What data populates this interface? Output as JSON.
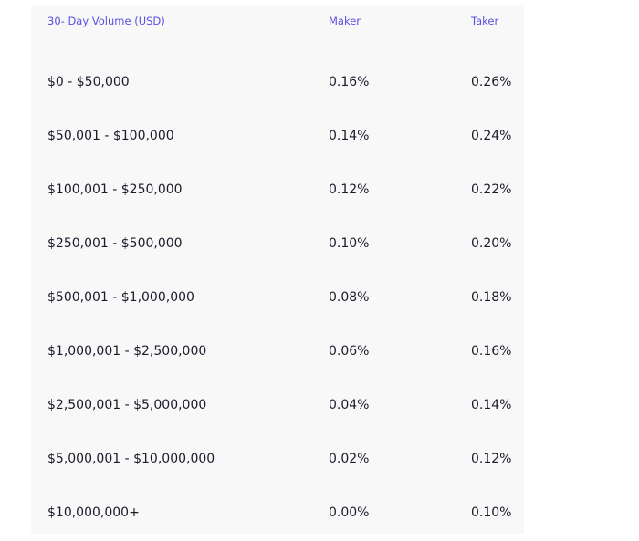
{
  "table": {
    "headers": {
      "volume": "30- Day Volume (USD)",
      "maker": "Maker",
      "taker": "Taker"
    },
    "rows": [
      {
        "volume": "$0 - $50,000",
        "maker": "0.16%",
        "taker": "0.26%"
      },
      {
        "volume": "$50,001 - $100,000",
        "maker": "0.14%",
        "taker": "0.24%"
      },
      {
        "volume": "$100,001 - $250,000",
        "maker": "0.12%",
        "taker": "0.22%"
      },
      {
        "volume": "$250,001 - $500,000",
        "maker": "0.10%",
        "taker": "0.20%"
      },
      {
        "volume": "$500,001 - $1,000,000",
        "maker": "0.08%",
        "taker": "0.18%"
      },
      {
        "volume": "$1,000,001 - $2,500,000",
        "maker": "0.06%",
        "taker": "0.16%"
      },
      {
        "volume": "$2,500,001 - $5,000,000",
        "maker": "0.04%",
        "taker": "0.14%"
      },
      {
        "volume": "$5,000,001 - $10,000,000",
        "maker": "0.02%",
        "taker": "0.12%"
      },
      {
        "volume": "$10,000,000+",
        "maker": "0.00%",
        "taker": "0.10%"
      }
    ]
  },
  "colors": {
    "header_text": "#5b4fe0",
    "row_text": "#1b1b2a",
    "panel_bg": "#f8f8f9"
  }
}
